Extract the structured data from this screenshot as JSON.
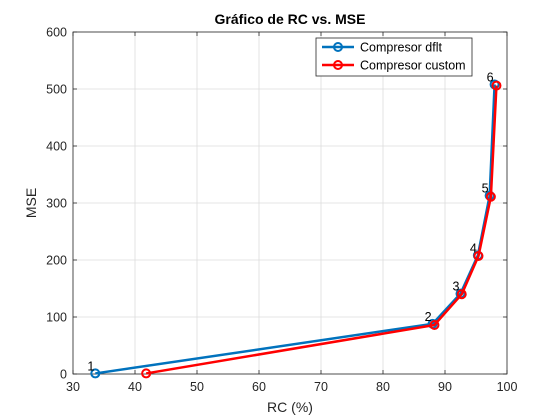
{
  "chart_data": {
    "type": "line",
    "title": "Gráfico de RC vs. MSE",
    "xlabel": "RC (%)",
    "ylabel": "MSE",
    "xlim": [
      30,
      100
    ],
    "ylim": [
      0,
      600
    ],
    "xticks": [
      "30",
      "40",
      "50",
      "60",
      "70",
      "80",
      "90",
      "100"
    ],
    "yticks": [
      "0",
      "100",
      "200",
      "300",
      "400",
      "500",
      "600"
    ],
    "grid": true,
    "legend_position": "top-right",
    "series": [
      {
        "name": "Compresor dflt",
        "color": "#0072BD",
        "x": [
          33.6,
          88.0,
          92.5,
          95.3,
          97.2,
          98.0
        ],
        "y": [
          1,
          88,
          141,
          208,
          313,
          508
        ]
      },
      {
        "name": "Compresor custom",
        "color": "#FF0000",
        "x": [
          41.8,
          88.3,
          92.7,
          95.4,
          97.4,
          98.3
        ],
        "y": [
          1,
          86,
          140,
          207,
          311,
          506
        ]
      }
    ],
    "annotations": [
      {
        "text": "1",
        "x": 33.6,
        "y": 1
      },
      {
        "text": "2",
        "x": 88.0,
        "y": 88
      },
      {
        "text": "3",
        "x": 92.5,
        "y": 141
      },
      {
        "text": "4",
        "x": 95.3,
        "y": 208
      },
      {
        "text": "5",
        "x": 97.2,
        "y": 313
      },
      {
        "text": "6",
        "x": 98.0,
        "y": 508
      }
    ]
  }
}
